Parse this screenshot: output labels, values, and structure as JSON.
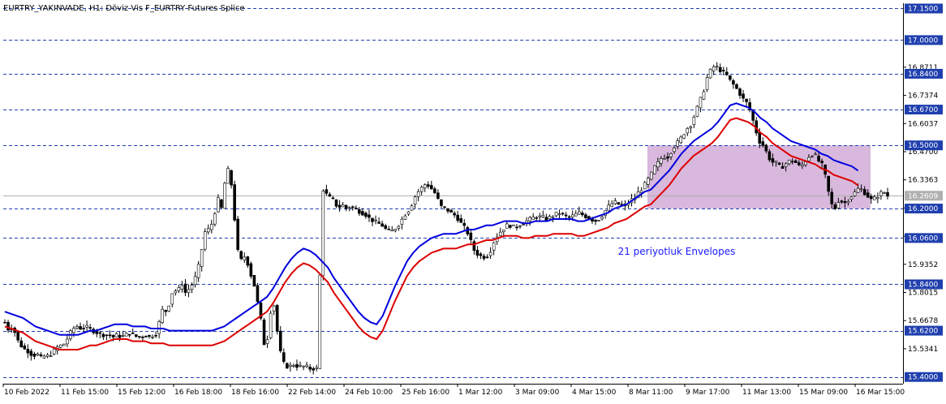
{
  "title": "EURTRY_YAKINVADE, H1:  Döviz Vis F_EURTRY Futures Splice",
  "annotation": "21 periyotluk Envelopes",
  "colors": {
    "background": "#ffffff",
    "candle": "#000000",
    "upper_envelope": "#0000dd",
    "lower_envelope": "#dd0000",
    "level_line": "#1f3fae",
    "level_label_bg": "#1f3fae",
    "zone_fill": "#d8b8dc",
    "current_price_line": "#b0b0b0",
    "current_price_label_bg": "#b0b0b0"
  },
  "chart_data": {
    "type": "candlestick",
    "y_axis_ticks": [
      "16.8711",
      "16.7374",
      "16.6037",
      "16.4700",
      "16.3363",
      "16.2026",
      "16.0689",
      "15.9352",
      "15.8015",
      "15.6678",
      "15.5341"
    ],
    "ylim": [
      15.368,
      17.175
    ],
    "x_axis_ticks": [
      "10 Feb 2022",
      "11 Feb 15:00",
      "15 Feb 12:00",
      "16 Feb 18:00",
      "18 Feb 16:00",
      "22 Feb 14:00",
      "24 Feb 10:00",
      "25 Feb 16:00",
      "1 Mar 12:00",
      "3 Mar 09:00",
      "4 Mar 15:00",
      "8 Mar 11:00",
      "9 Mar 17:00",
      "11 Mar 13:00",
      "15 Mar 09:00",
      "16 Mar 15:00"
    ],
    "horizontal_levels": [
      "17.1500",
      "17.0000",
      "16.8400",
      "16.6700",
      "16.5000",
      "16.2000",
      "16.0600",
      "15.8400",
      "15.6200",
      "15.4000"
    ],
    "current_price": "16.2609",
    "highlight_zone": {
      "from_price": 16.2,
      "to_price": 16.5
    },
    "grid": false,
    "envelope_period": 21,
    "bar_count": 270,
    "series": [
      {
        "values": [
          15.66,
          15.62,
          15.64,
          15.58,
          15.55,
          15.53,
          15.52,
          15.5,
          15.51,
          15.49,
          15.5,
          15.5,
          15.52,
          15.54,
          15.55,
          15.56,
          15.6,
          15.63,
          15.64,
          15.63,
          15.64,
          15.63,
          15.62,
          15.61,
          15.6,
          15.6,
          15.6,
          15.59,
          15.6,
          15.59,
          15.6,
          15.61,
          15.6,
          15.59,
          15.59,
          15.6,
          15.59,
          15.6,
          15.61,
          15.72,
          15.71,
          15.75,
          15.82,
          15.8,
          15.85,
          15.8,
          15.82,
          15.85,
          15.9,
          16.0,
          16.1,
          16.1,
          16.15,
          16.25,
          16.2,
          16.35,
          16.4,
          16.2,
          16.0,
          15.95,
          15.98,
          15.9,
          15.85,
          15.75,
          15.65,
          15.5,
          15.7,
          15.75,
          15.6,
          15.48,
          15.45,
          15.45,
          15.46,
          15.45,
          15.45,
          15.45,
          15.44,
          15.44,
          15.44,
          16.3,
          16.27,
          16.25,
          16.24,
          16.2,
          16.22,
          16.2,
          16.21,
          16.2,
          16.19,
          16.18,
          16.17,
          16.15,
          16.14,
          16.13,
          16.12,
          16.1,
          16.09,
          16.1,
          16.12,
          16.15,
          16.18,
          16.2,
          16.25,
          16.28,
          16.3,
          16.32,
          16.3,
          16.28,
          16.24,
          16.2,
          16.2,
          16.18,
          16.17,
          16.15,
          16.12,
          16.1,
          16.05,
          16.0,
          15.98,
          15.97,
          15.97,
          16.0,
          16.05,
          16.08,
          16.1,
          16.12,
          16.12,
          16.11,
          16.12,
          16.13,
          16.14,
          16.15,
          16.16,
          16.16,
          16.16,
          16.15,
          16.16,
          16.17,
          16.18,
          16.17,
          16.16,
          16.16,
          16.17,
          16.18,
          16.17,
          16.16,
          16.15,
          16.14,
          16.15,
          16.17,
          16.2,
          16.22,
          16.23,
          16.22,
          16.21,
          16.22,
          16.24,
          16.25,
          16.28,
          16.3,
          16.33,
          16.36,
          16.4,
          16.42,
          16.45,
          16.44,
          16.47,
          16.5,
          16.52,
          16.55,
          16.58,
          16.6,
          16.65,
          16.7,
          16.75,
          16.82,
          16.86,
          16.88,
          16.86,
          16.85,
          16.83,
          16.8,
          16.78,
          16.75,
          16.72,
          16.7,
          16.65,
          16.58,
          16.52,
          16.5,
          16.46,
          16.42,
          16.42,
          16.4,
          16.4,
          16.42,
          16.43,
          16.42,
          16.4,
          16.41,
          16.44,
          16.46,
          16.45,
          16.42,
          16.4,
          16.3,
          16.22,
          16.2,
          16.25,
          16.22,
          16.24,
          16.26,
          16.28,
          16.3,
          16.28,
          16.26,
          16.24,
          16.25,
          16.27,
          16.28,
          16.26
        ]
      },
      {
        "values": [
          15.71,
          15.7,
          15.69,
          15.68,
          15.66,
          15.64,
          15.63,
          15.62,
          15.61,
          15.6,
          15.6,
          15.6,
          15.6,
          15.61,
          15.62,
          15.62,
          15.63,
          15.64,
          15.65,
          15.65,
          15.65,
          15.64,
          15.64,
          15.64,
          15.63,
          15.63,
          15.63,
          15.62,
          15.62,
          15.62,
          15.62,
          15.62,
          15.62,
          15.62,
          15.62,
          15.63,
          15.64,
          15.66,
          15.68,
          15.7,
          15.72,
          15.74,
          15.76,
          15.78,
          15.82,
          15.87,
          15.92,
          15.96,
          15.99,
          16.01,
          16.0,
          15.98,
          15.95,
          15.92,
          15.87,
          15.83,
          15.79,
          15.75,
          15.71,
          15.68,
          15.66,
          15.65,
          15.69,
          15.76,
          15.83,
          15.89,
          15.95,
          15.99,
          16.02,
          16.04,
          16.06,
          16.07,
          16.08,
          16.08,
          16.08,
          16.09,
          16.1,
          16.1,
          16.11,
          16.12,
          16.12,
          16.13,
          16.14,
          16.14,
          16.14,
          16.13,
          16.13,
          16.14,
          16.14,
          16.14,
          16.15,
          16.15,
          16.15,
          16.15,
          16.14,
          16.14,
          16.15,
          16.16,
          16.17,
          16.18,
          16.2,
          16.21,
          16.22,
          16.24,
          16.26,
          16.28,
          16.29,
          16.32,
          16.35,
          16.38,
          16.42,
          16.46,
          16.49,
          16.52,
          16.54,
          16.56,
          16.58,
          16.61,
          16.65,
          16.69,
          16.7,
          16.69,
          16.68,
          16.66,
          16.63,
          16.61,
          16.58,
          16.56,
          16.54,
          16.52,
          16.51,
          16.5,
          16.49,
          16.48,
          16.46,
          16.45,
          16.43,
          16.42,
          16.41,
          16.4,
          16.38
        ]
      },
      {
        "values": [
          15.64,
          15.63,
          15.62,
          15.61,
          15.59,
          15.57,
          15.56,
          15.55,
          15.54,
          15.53,
          15.53,
          15.53,
          15.53,
          15.54,
          15.55,
          15.55,
          15.56,
          15.57,
          15.58,
          15.58,
          15.58,
          15.57,
          15.57,
          15.57,
          15.56,
          15.56,
          15.56,
          15.55,
          15.55,
          15.55,
          15.55,
          15.55,
          15.55,
          15.55,
          15.55,
          15.56,
          15.57,
          15.59,
          15.61,
          15.63,
          15.65,
          15.67,
          15.69,
          15.71,
          15.75,
          15.8,
          15.85,
          15.89,
          15.92,
          15.94,
          15.93,
          15.91,
          15.88,
          15.85,
          15.8,
          15.76,
          15.72,
          15.68,
          15.64,
          15.61,
          15.59,
          15.58,
          15.62,
          15.69,
          15.76,
          15.82,
          15.88,
          15.92,
          15.95,
          15.97,
          15.99,
          16.0,
          16.01,
          16.01,
          16.01,
          16.02,
          16.03,
          16.03,
          16.04,
          16.05,
          16.05,
          16.06,
          16.07,
          16.07,
          16.07,
          16.06,
          16.06,
          16.07,
          16.07,
          16.07,
          16.08,
          16.08,
          16.08,
          16.08,
          16.07,
          16.07,
          16.08,
          16.09,
          16.1,
          16.11,
          16.13,
          16.14,
          16.15,
          16.17,
          16.19,
          16.21,
          16.22,
          16.25,
          16.28,
          16.31,
          16.35,
          16.39,
          16.42,
          16.45,
          16.47,
          16.49,
          16.51,
          16.54,
          16.58,
          16.62,
          16.63,
          16.62,
          16.61,
          16.59,
          16.56,
          16.54,
          16.51,
          16.49,
          16.47,
          16.45,
          16.44,
          16.43,
          16.42,
          16.41,
          16.39,
          16.38,
          16.36,
          16.35,
          16.34,
          16.33,
          16.31
        ]
      }
    ]
  }
}
